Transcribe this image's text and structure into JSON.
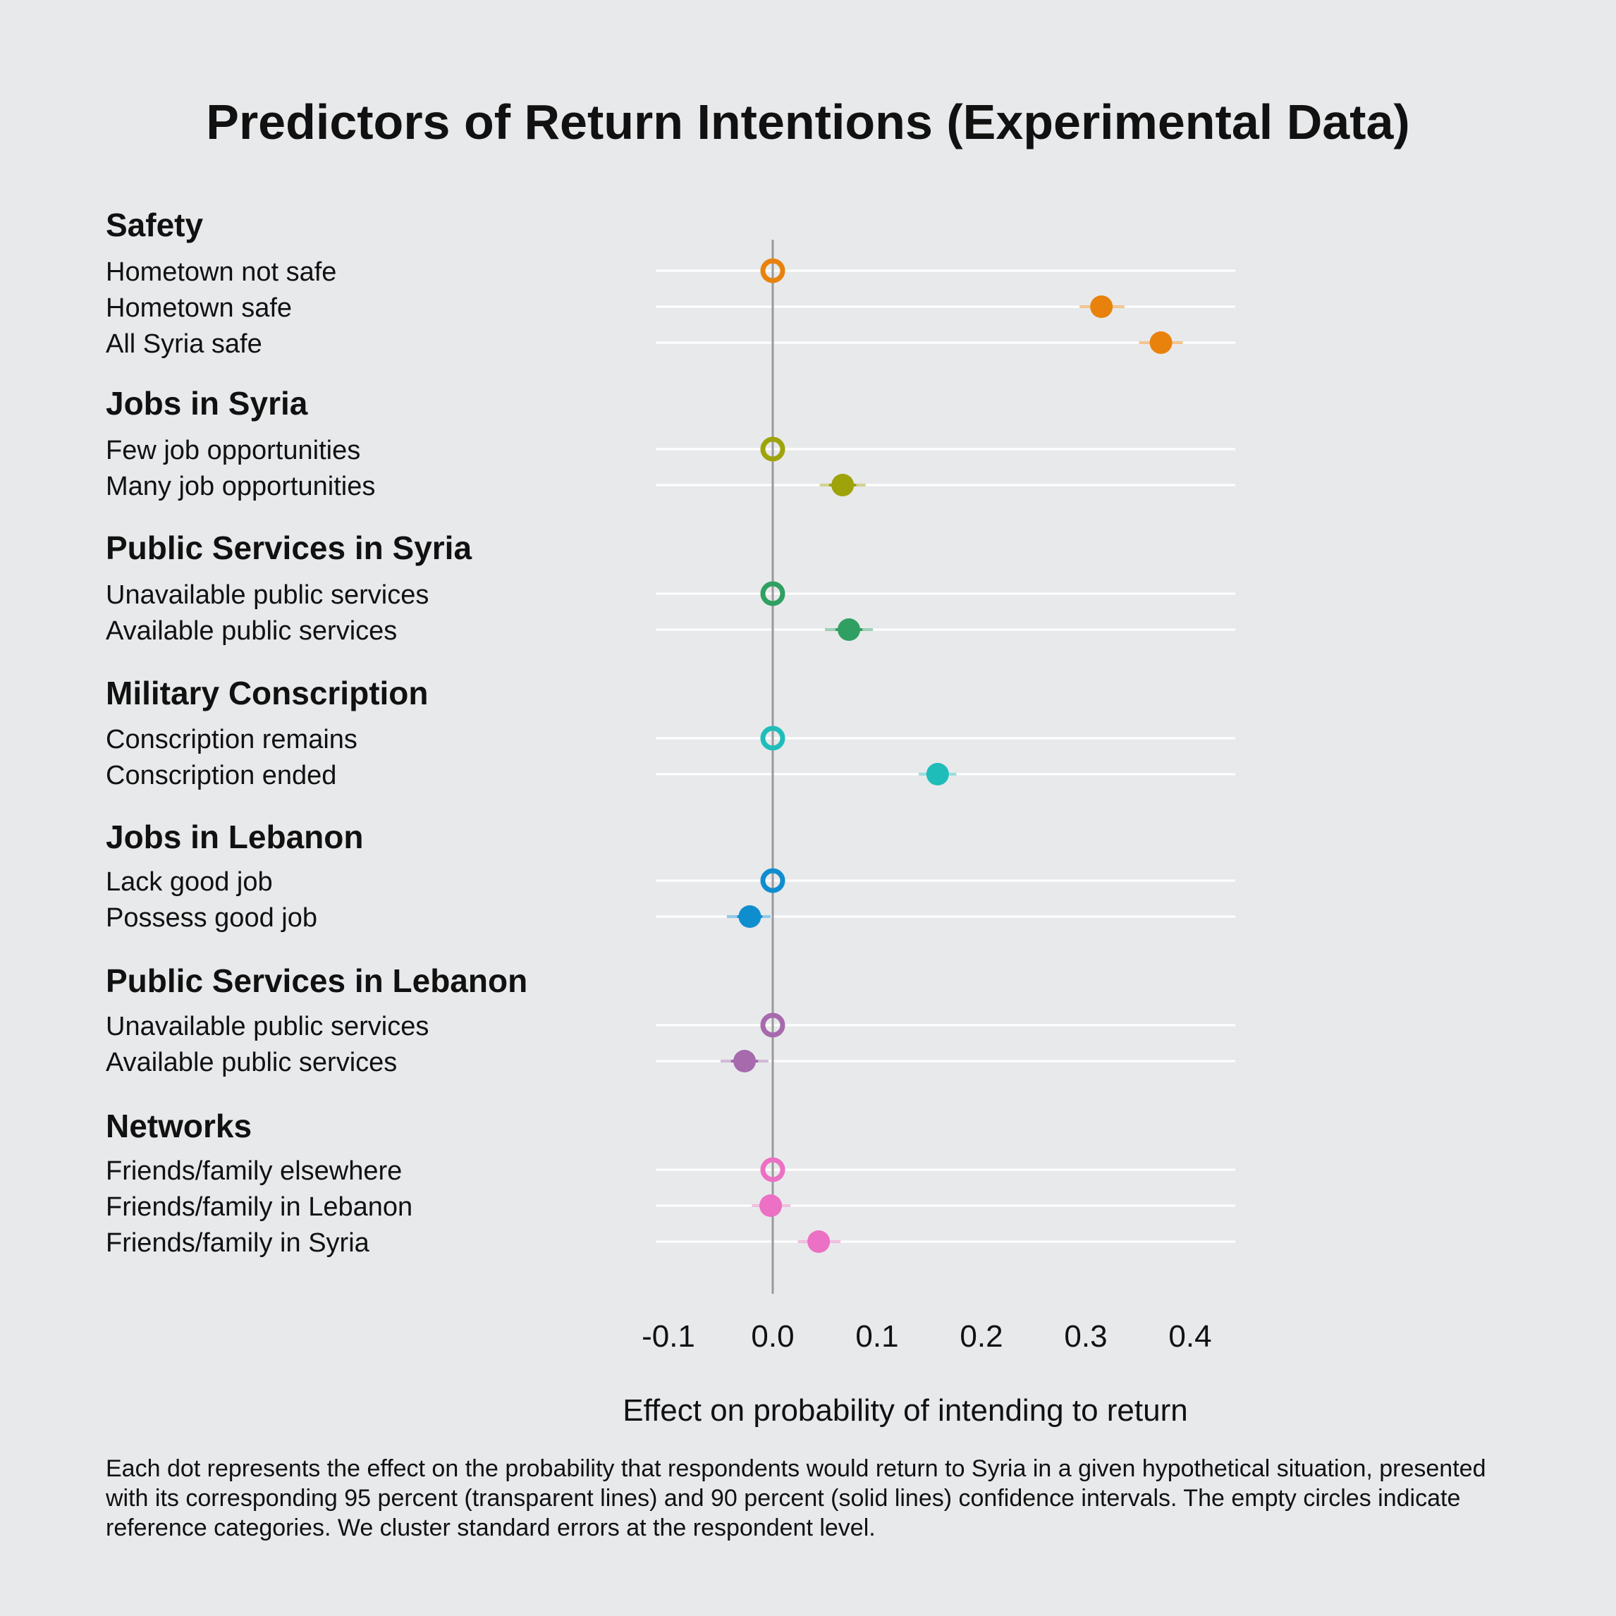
{
  "title": "Predictors of Return Intentions (Experimental Data)",
  "note": "Each dot represents the effect on the probability that respondents would return to Syria in a given hypothetical situation, presented with its corresponding 95 percent (transparent lines) and 90 percent (solid lines) confidence intervals. The empty circles indicate reference categories. We cluster standard errors at the respondent level.",
  "chart_data": {
    "type": "scatter",
    "title": "Predictors of Return Intentions (Experimental Data)",
    "xlabel": "Effect on probability of intending to return",
    "xlim": [
      -0.11,
      0.44
    ],
    "xticks": [
      -0.1,
      0.0,
      0.1,
      0.2,
      0.3,
      0.4
    ],
    "xtick_labels": [
      "-0.1",
      "0.0",
      "0.1",
      "0.2",
      "0.3",
      "0.4"
    ],
    "reference_line": 0.0,
    "groups": [
      {
        "name": "Safety",
        "color": "#e8820c",
        "items": [
          {
            "label": "Hometown not safe",
            "estimate": 0.0,
            "reference": true
          },
          {
            "label": "Hometown safe",
            "estimate": 0.315,
            "ci90": [
              0.305,
              0.325
            ],
            "ci95": [
              0.294,
              0.337
            ],
            "reference": false
          },
          {
            "label": "All Syria safe",
            "estimate": 0.372,
            "ci90": [
              0.362,
              0.382
            ],
            "ci95": [
              0.351,
              0.393
            ],
            "reference": false
          }
        ]
      },
      {
        "name": "Jobs in Syria",
        "color": "#9ea30a",
        "items": [
          {
            "label": "Few job opportunities",
            "estimate": 0.0,
            "reference": true
          },
          {
            "label": "Many job opportunities",
            "estimate": 0.067,
            "ci90": [
              0.054,
              0.08
            ],
            "ci95": [
              0.045,
              0.089
            ],
            "reference": false
          }
        ]
      },
      {
        "name": "Public Services in Syria",
        "color": "#2fa061",
        "items": [
          {
            "label": "Unavailable public services",
            "estimate": 0.0,
            "reference": true
          },
          {
            "label": "Available public services",
            "estimate": 0.073,
            "ci90": [
              0.06,
              0.086
            ],
            "ci95": [
              0.05,
              0.096
            ],
            "reference": false
          }
        ]
      },
      {
        "name": "Military Conscription",
        "color": "#1fbdba",
        "items": [
          {
            "label": "Conscription remains",
            "estimate": 0.0,
            "reference": true
          },
          {
            "label": "Conscription ended",
            "estimate": 0.158,
            "ci90": [
              0.148,
              0.168
            ],
            "ci95": [
              0.14,
              0.176
            ],
            "reference": false
          }
        ]
      },
      {
        "name": "Jobs in Lebanon",
        "color": "#0f8ecf",
        "items": [
          {
            "label": "Lack good job",
            "estimate": 0.0,
            "reference": true
          },
          {
            "label": "Possess good job",
            "estimate": -0.022,
            "ci90": [
              -0.034,
              -0.01
            ],
            "ci95": [
              -0.044,
              -0.002
            ],
            "reference": false
          }
        ]
      },
      {
        "name": "Public Services in Lebanon",
        "color": "#a66aad",
        "items": [
          {
            "label": "Unavailable public services",
            "estimate": 0.0,
            "reference": true
          },
          {
            "label": "Available public services",
            "estimate": -0.027,
            "ci90": [
              -0.04,
              -0.014
            ],
            "ci95": [
              -0.05,
              -0.004
            ],
            "reference": false
          }
        ]
      },
      {
        "name": "Networks",
        "color": "#ec70c4",
        "items": [
          {
            "label": "Friends/family elsewhere",
            "estimate": 0.0,
            "reference": true
          },
          {
            "label": "Friends/family in Lebanon",
            "estimate": -0.002,
            "ci90": [
              -0.012,
              0.008
            ],
            "ci95": [
              -0.02,
              0.017
            ],
            "reference": false
          },
          {
            "label": "Friends/family in Syria",
            "estimate": 0.044,
            "ci90": [
              0.034,
              0.054
            ],
            "ci95": [
              0.024,
              0.065
            ],
            "reference": false
          }
        ]
      }
    ]
  }
}
